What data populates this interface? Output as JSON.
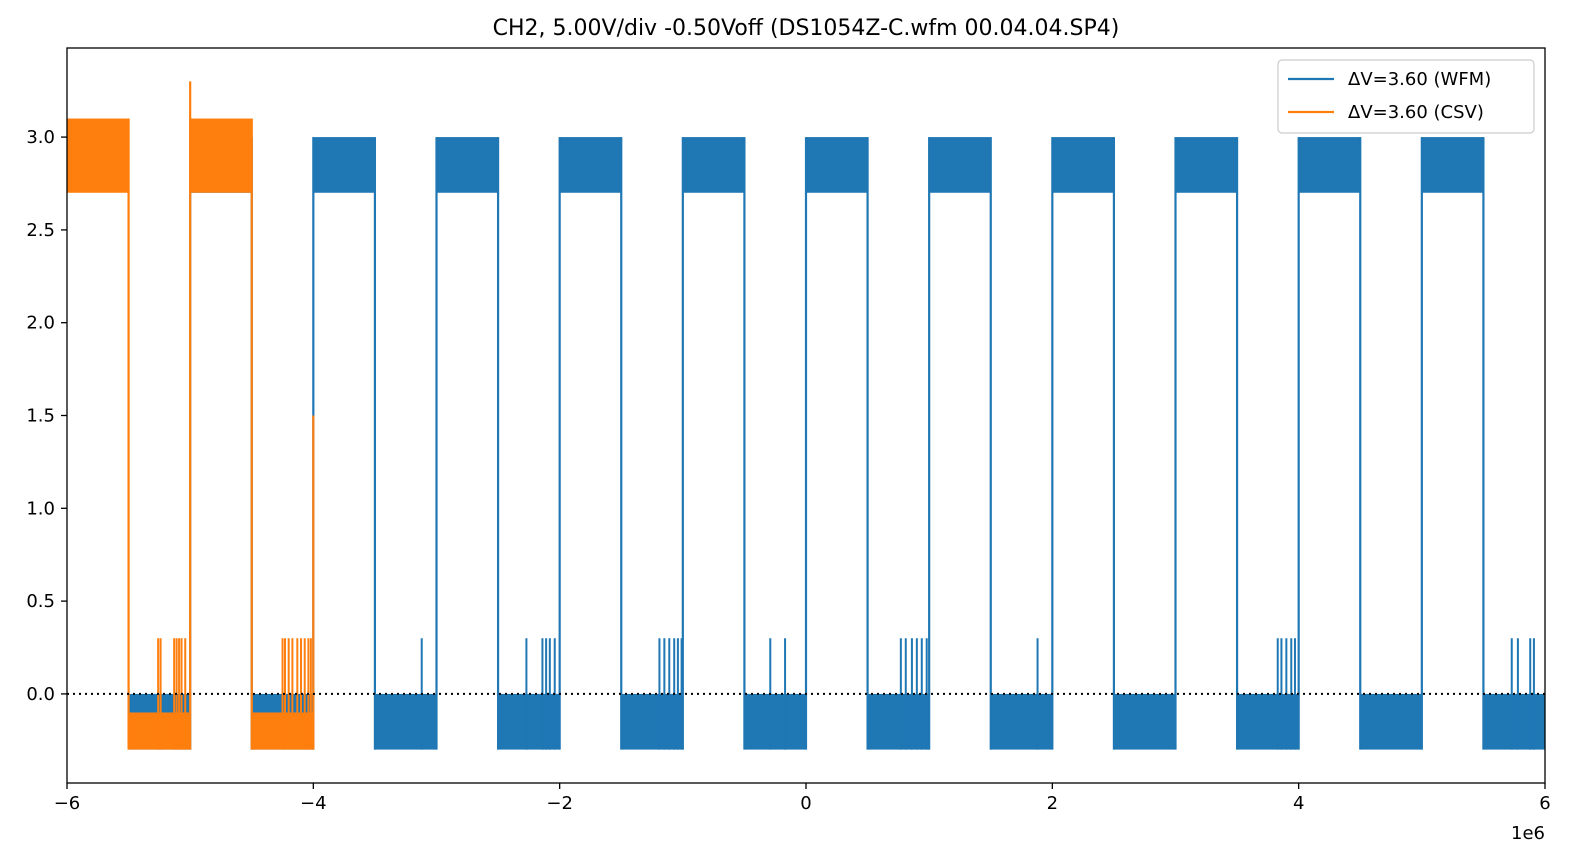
{
  "chart_data": {
    "type": "line",
    "title": "CH2, 5.00V/div -0.50Voff (DS1054Z-C.wfm 00.04.04.SP4)",
    "xlabel": "",
    "ylabel": "",
    "x_scale_label": "1e6",
    "xlim": [
      -6,
      6
    ],
    "ylim": [
      -0.48,
      3.48
    ],
    "x_ticks": [
      -6,
      -4,
      -2,
      0,
      2,
      4,
      6
    ],
    "x_tick_labels": [
      "−6",
      "−4",
      "−2",
      "0",
      "2",
      "4",
      "6"
    ],
    "y_ticks": [
      0.0,
      0.5,
      1.0,
      1.5,
      2.0,
      2.5,
      3.0
    ],
    "y_tick_labels": [
      "0.0",
      "0.5",
      "1.0",
      "1.5",
      "2.0",
      "2.5",
      "3.0"
    ],
    "grid": false,
    "legend_position": "top-right",
    "reference_line": {
      "y": 0.0,
      "style": "dotted",
      "color": "#000000"
    },
    "series": [
      {
        "name": "ΔV=3.60 (WFM)",
        "color": "#1f77b4",
        "x_range": [
          -5.5,
          6
        ],
        "high_band": [
          2.7,
          3.0
        ],
        "low_band": [
          -0.3,
          0.0
        ],
        "period": 1.0,
        "high_intervals": [
          [
            -5.0,
            -4.5
          ],
          [
            -4.0,
            -3.5
          ],
          [
            -3.0,
            -2.5
          ],
          [
            -2.0,
            -1.5
          ],
          [
            -1.0,
            -0.5
          ],
          [
            0.0,
            0.5
          ],
          [
            1.0,
            1.5
          ],
          [
            2.0,
            2.5
          ],
          [
            3.0,
            3.5
          ],
          [
            4.0,
            4.5
          ],
          [
            5.0,
            5.5
          ]
        ],
        "low_intervals": [
          [
            -5.5,
            -5.0
          ],
          [
            -4.5,
            -4.0
          ],
          [
            -3.5,
            -3.0
          ],
          [
            -2.5,
            -2.0
          ],
          [
            -1.5,
            -1.0
          ],
          [
            -0.5,
            0.0
          ],
          [
            0.5,
            1.0
          ],
          [
            1.5,
            2.0
          ],
          [
            2.5,
            3.0
          ],
          [
            3.5,
            4.0
          ],
          [
            4.5,
            5.0
          ],
          [
            5.5,
            6.0
          ]
        ],
        "glitch_peak": 0.3,
        "glitches": [
          -3.12,
          -2.27,
          -2.14,
          -2.11,
          -2.08,
          -2.04,
          -1.19,
          -1.15,
          -1.11,
          -1.07,
          -1.04,
          -1.01,
          -0.29,
          -0.17,
          0.77,
          0.81,
          0.86,
          0.9,
          0.94,
          0.98,
          1.88,
          3.83,
          3.86,
          3.9,
          3.94,
          3.97,
          5.73,
          5.78,
          5.88,
          5.91
        ]
      },
      {
        "name": "ΔV=3.60 (CSV)",
        "color": "#ff7f0e",
        "x_range": [
          -6,
          -4
        ],
        "high_band": [
          2.7,
          3.1
        ],
        "low_band": [
          -0.3,
          -0.1
        ],
        "high_intervals": [
          [
            -6.0,
            -5.5
          ],
          [
            -5.0,
            -4.5
          ]
        ],
        "low_intervals": [
          [
            -5.5,
            -5.0
          ],
          [
            -4.5,
            -4.0
          ]
        ],
        "glitch_peak": 0.3,
        "spike": {
          "x": -5.0,
          "y": 3.3
        },
        "end_value": {
          "x": -4.0,
          "y": 1.5
        },
        "glitches": [
          -5.26,
          -5.24,
          -5.13,
          -5.11,
          -5.09,
          -5.07,
          -5.04,
          -4.25,
          -4.23,
          -4.2,
          -4.17,
          -4.13,
          -4.1,
          -4.07,
          -4.04,
          -4.02
        ]
      }
    ]
  }
}
